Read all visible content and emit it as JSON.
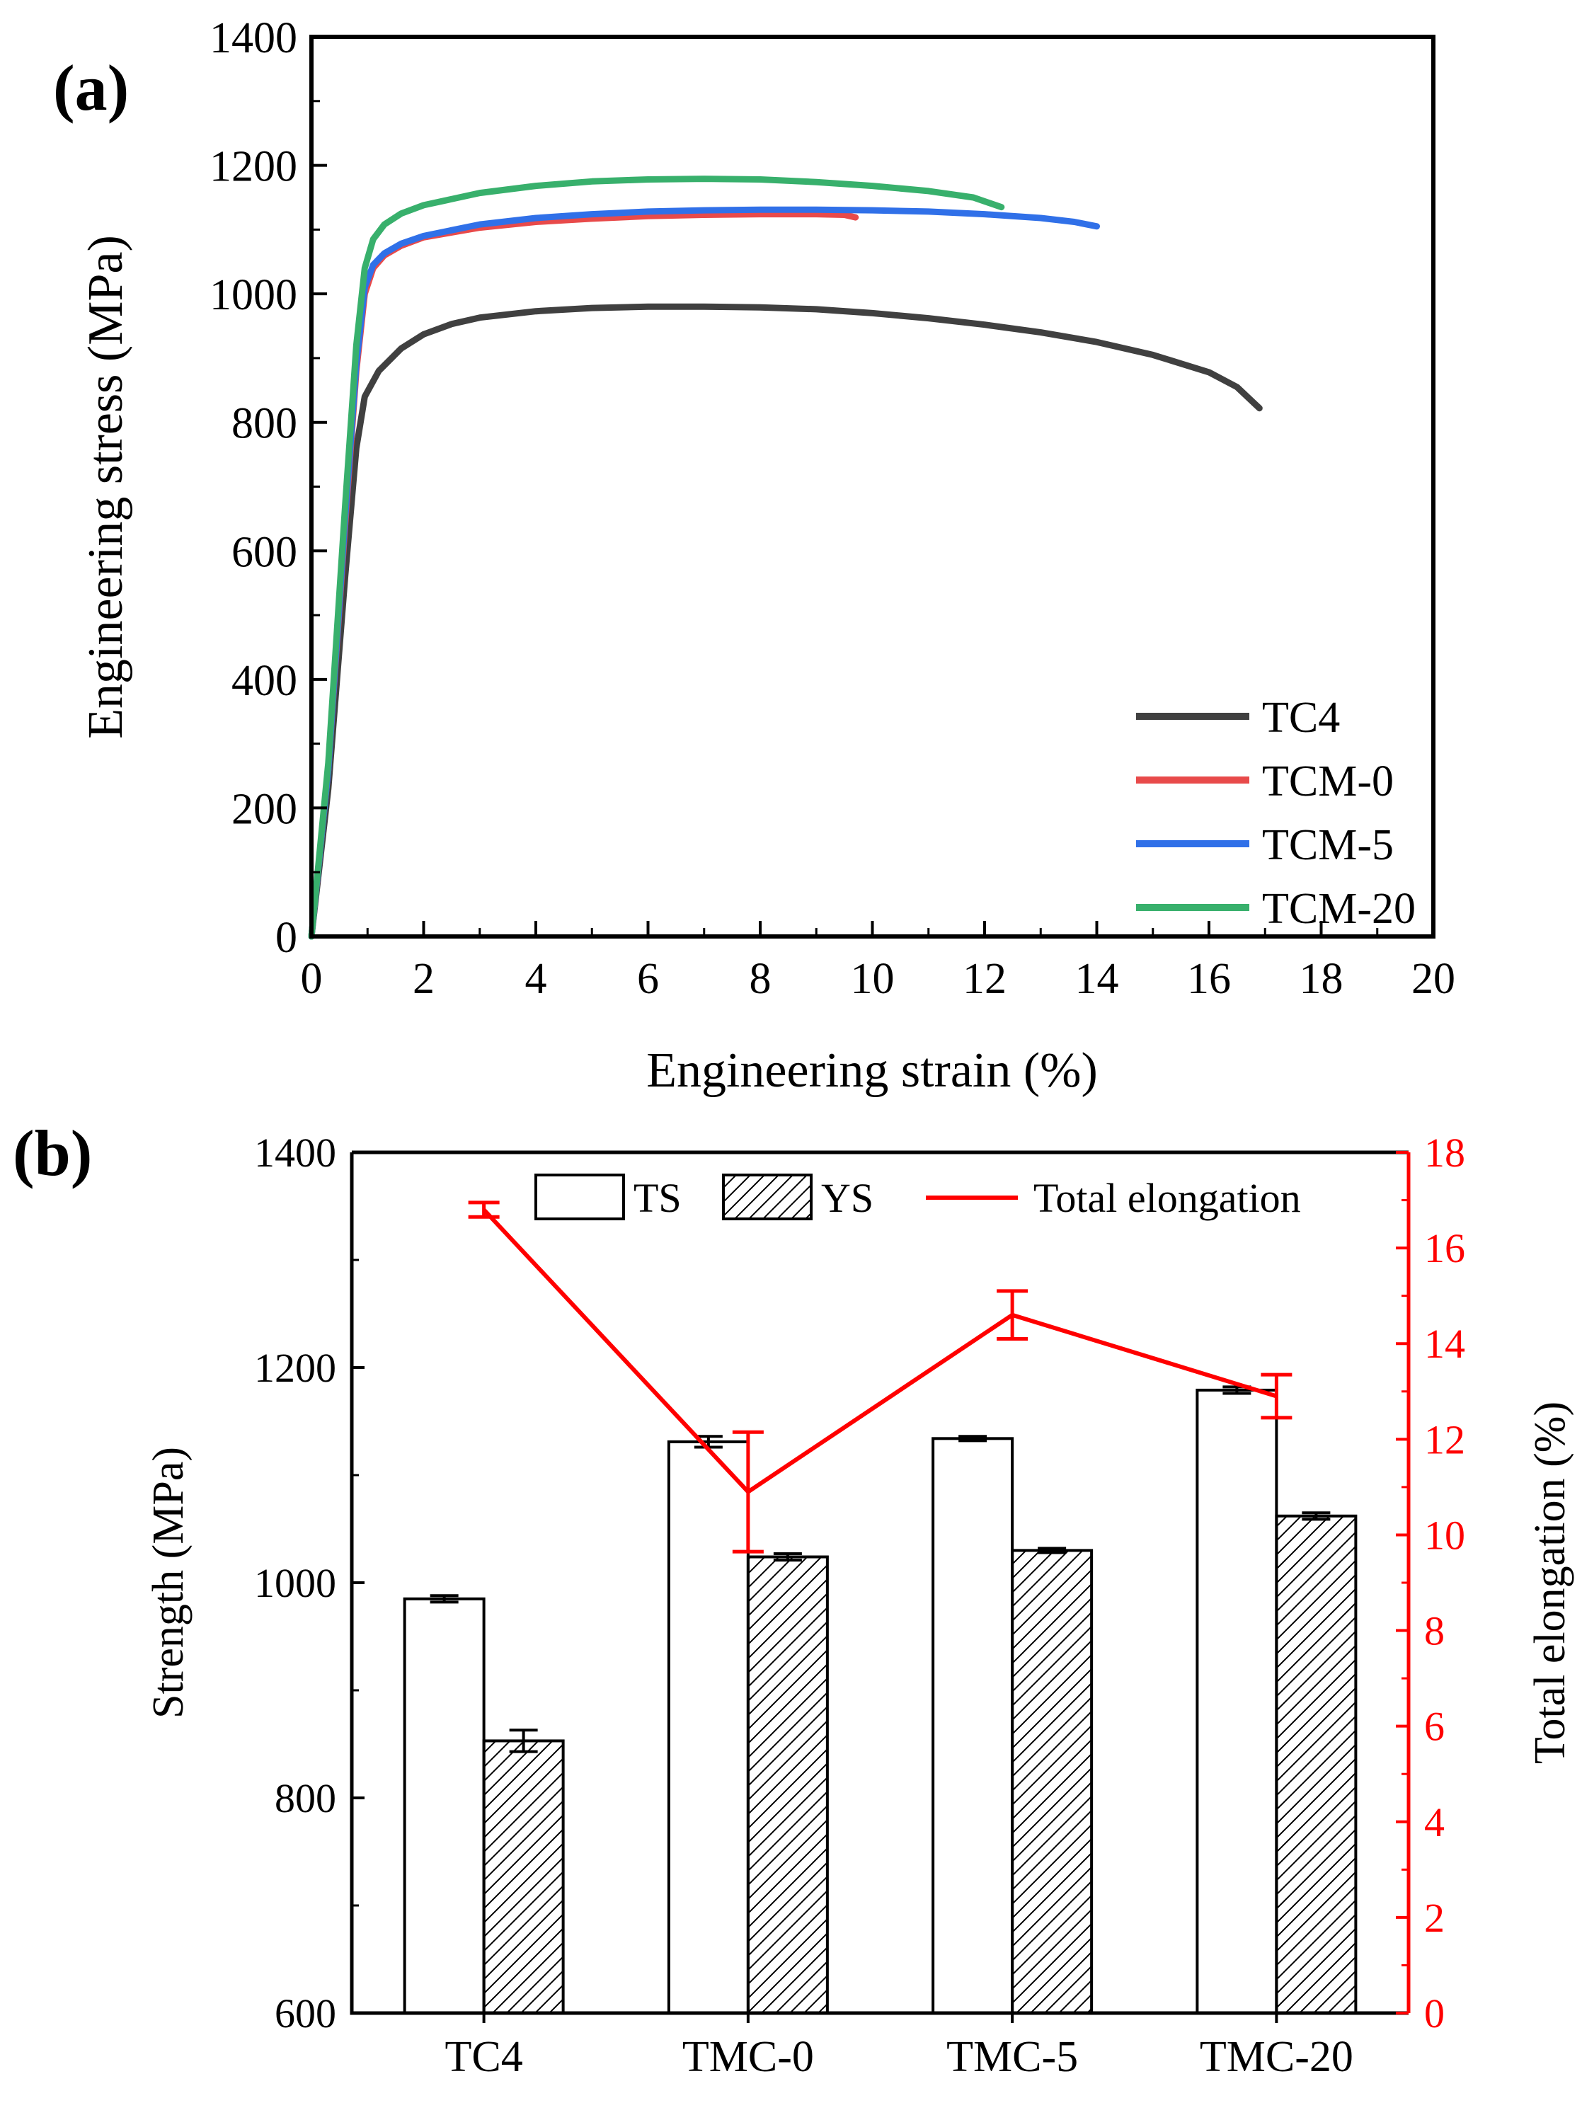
{
  "chart_data": [
    {
      "panel_label": "(a)",
      "type": "line",
      "xlabel": "Engineering strain (%)",
      "ylabel": "Engineering stress (MPa)",
      "xlim": [
        0,
        20
      ],
      "ylim": [
        0,
        1400
      ],
      "x_ticks": [
        "0",
        "2",
        "4",
        "6",
        "8",
        "10",
        "12",
        "14",
        "16",
        "18",
        "20"
      ],
      "y_ticks": [
        "0",
        "200",
        "400",
        "600",
        "800",
        "1000",
        "1200",
        "1400"
      ],
      "legend_position": "bottom-right",
      "series": [
        {
          "name": "TC4",
          "color": "#404040",
          "points": [
            [
              0,
              0
            ],
            [
              0.3,
              230
            ],
            [
              0.6,
              560
            ],
            [
              0.8,
              760
            ],
            [
              0.95,
              840
            ],
            [
              1.2,
              880
            ],
            [
              1.6,
              915
            ],
            [
              2,
              937
            ],
            [
              2.5,
              953
            ],
            [
              3,
              963
            ],
            [
              4,
              973
            ],
            [
              5,
              978
            ],
            [
              6,
              980
            ],
            [
              7,
              980
            ],
            [
              8,
              979
            ],
            [
              9,
              976
            ],
            [
              10,
              970
            ],
            [
              11,
              962
            ],
            [
              12,
              952
            ],
            [
              13,
              940
            ],
            [
              14,
              925
            ],
            [
              15,
              905
            ],
            [
              16,
              878
            ],
            [
              16.5,
              855
            ],
            [
              16.9,
              822
            ]
          ]
        },
        {
          "name": "TCM-0",
          "color": "#e84a4a",
          "points": [
            [
              0,
              0
            ],
            [
              0.3,
              260
            ],
            [
              0.6,
              640
            ],
            [
              0.8,
              880
            ],
            [
              0.95,
              1000
            ],
            [
              1.1,
              1040
            ],
            [
              1.3,
              1060
            ],
            [
              1.6,
              1075
            ],
            [
              2,
              1088
            ],
            [
              3,
              1103
            ],
            [
              4,
              1112
            ],
            [
              5,
              1117
            ],
            [
              6,
              1121
            ],
            [
              7,
              1123
            ],
            [
              8,
              1124
            ],
            [
              9,
              1124
            ],
            [
              9.5,
              1123
            ],
            [
              9.7,
              1119
            ]
          ]
        },
        {
          "name": "TCM-5",
          "color": "#3070e8",
          "points": [
            [
              0,
              0
            ],
            [
              0.3,
              260
            ],
            [
              0.6,
              650
            ],
            [
              0.8,
              890
            ],
            [
              0.95,
              1010
            ],
            [
              1.1,
              1045
            ],
            [
              1.3,
              1063
            ],
            [
              1.6,
              1078
            ],
            [
              2,
              1090
            ],
            [
              3,
              1108
            ],
            [
              4,
              1118
            ],
            [
              5,
              1124
            ],
            [
              6,
              1128
            ],
            [
              7,
              1130
            ],
            [
              8,
              1131
            ],
            [
              9,
              1131
            ],
            [
              10,
              1130
            ],
            [
              11,
              1128
            ],
            [
              12,
              1124
            ],
            [
              13,
              1118
            ],
            [
              13.6,
              1112
            ],
            [
              14,
              1105
            ]
          ]
        },
        {
          "name": "TCM-20",
          "color": "#38b06c",
          "points": [
            [
              0,
              0
            ],
            [
              0.3,
              270
            ],
            [
              0.6,
              670
            ],
            [
              0.8,
              920
            ],
            [
              0.95,
              1040
            ],
            [
              1.1,
              1085
            ],
            [
              1.3,
              1108
            ],
            [
              1.6,
              1125
            ],
            [
              2,
              1138
            ],
            [
              3,
              1157
            ],
            [
              4,
              1168
            ],
            [
              5,
              1175
            ],
            [
              6,
              1178
            ],
            [
              7,
              1179
            ],
            [
              8,
              1178
            ],
            [
              9,
              1174
            ],
            [
              10,
              1168
            ],
            [
              11,
              1160
            ],
            [
              11.8,
              1150
            ],
            [
              12.3,
              1135
            ]
          ]
        }
      ]
    },
    {
      "panel_label": "(b)",
      "type": "bar",
      "ylabel": "Strength (MPa)",
      "y2label": "Total elongation (%)",
      "categories": [
        "TC4",
        "TMC-0",
        "TMC-5",
        "TMC-20"
      ],
      "ylim": [
        600,
        1400
      ],
      "y2lim": [
        0,
        18
      ],
      "y_ticks": [
        "600",
        "800",
        "1000",
        "1200",
        "1400"
      ],
      "y2_ticks": [
        "0",
        "2",
        "4",
        "6",
        "8",
        "10",
        "12",
        "14",
        "16",
        "18"
      ],
      "legend": {
        "ts": "TS",
        "ys": "YS",
        "line": "Total elongation"
      },
      "legend_position": "top",
      "line_color": "#ff0000",
      "series": [
        {
          "name": "TS",
          "values": [
            985,
            1131,
            1134,
            1179
          ],
          "errors": [
            3,
            5,
            2,
            3
          ]
        },
        {
          "name": "YS",
          "values": [
            853,
            1024,
            1030,
            1062
          ],
          "errors": [
            10,
            3,
            2,
            3
          ]
        },
        {
          "name": "Total elongation",
          "axis": "right",
          "values": [
            16.8,
            10.9,
            14.6,
            12.9
          ],
          "errors": [
            0.15,
            1.25,
            0.5,
            0.45
          ]
        }
      ]
    }
  ]
}
